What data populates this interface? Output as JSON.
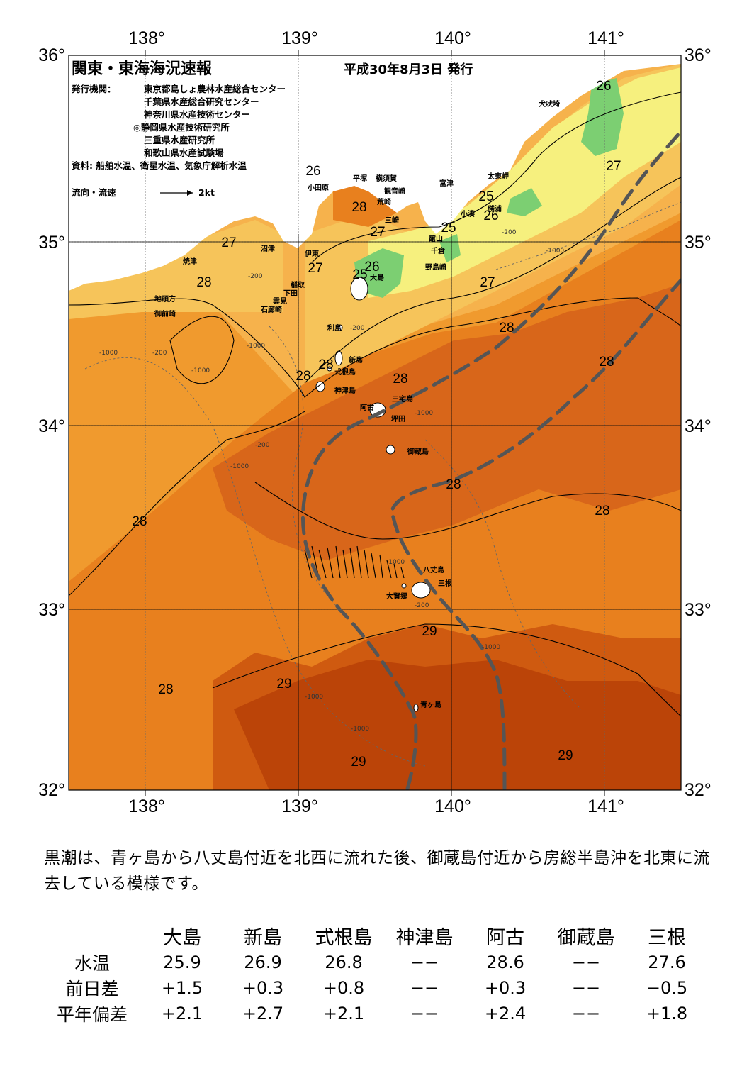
{
  "header": {
    "title": "関東・東海海況速報",
    "date": "平成30年8月3日 発行",
    "issuer_label": "発行機関：",
    "issuers": [
      "東京都島しょ農林水産総合センター",
      "千葉県水産総合研究センター",
      "神奈川県水産技術センター",
      "◎静岡県水産技術研究所",
      "三重県水産研究所",
      "和歌山県水産試験場"
    ],
    "source": "資料: 船舶水温、衛星水温、気象庁解析水温",
    "legend_label": "流向・流速",
    "legend_value": "2kt"
  },
  "axes": {
    "lon_top": [
      "138°",
      "139°",
      "140°",
      "141°"
    ],
    "lon_bottom": [
      "138°",
      "139°",
      "140°",
      "141°"
    ],
    "lat_left": [
      "36°",
      "35°",
      "34°",
      "33°",
      "32°"
    ],
    "lat_right": [
      "36°",
      "35°",
      "34°",
      "33°",
      "32°"
    ]
  },
  "place_names": [
    "小田原",
    "平塚",
    "横須賀",
    "観音崎",
    "荒崎",
    "三崎",
    "富津",
    "館山",
    "千倉",
    "野島崎",
    "小湊",
    "勝浦",
    "太東岬",
    "犬吠埼",
    "沼津",
    "焼津",
    "伊東",
    "稲取",
    "下田",
    "雲見",
    "石廊崎",
    "地頭方",
    "御前崎",
    "大島",
    "利島",
    "新島",
    "式根島",
    "神津島",
    "三宅島",
    "阿古",
    "坪田",
    "御蔵島",
    "八丈島",
    "三根",
    "大賀郷",
    "青ヶ島"
  ],
  "isotherm_labels": [
    "26",
    "28",
    "27",
    "25",
    "26",
    "25",
    "26",
    "27",
    "28",
    "27",
    "26",
    "25",
    "27",
    "28",
    "27",
    "28",
    "28",
    "28",
    "28",
    "28",
    "28",
    "28",
    "28",
    "29",
    "29",
    "29",
    "29",
    "28"
  ],
  "depth_labels": [
    "-1000",
    "-200",
    "-1000",
    "-200",
    "-1000",
    "-200",
    "-1000",
    "-200",
    "-1000",
    "-1000",
    "-200",
    "-1000",
    "-1000",
    "-1000",
    "-1000",
    "-200"
  ],
  "summary": "黒潮は、青ヶ島から八丈島付近を北西に流れた後、御蔵島付近から房総半島沖を北東に流去している模様です。",
  "table": {
    "columns": [
      "大島",
      "新島",
      "式根島",
      "神津島",
      "阿古",
      "御蔵島",
      "三根"
    ],
    "rows": [
      {
        "label": "水温",
        "values": [
          "25.9",
          "26.9",
          "26.8",
          "−−",
          "28.6",
          "−−",
          "27.6"
        ]
      },
      {
        "label": "前日差",
        "values": [
          "+1.5",
          "+0.3",
          "+0.8",
          "−−",
          "+0.3",
          "−−",
          "−0.5"
        ]
      },
      {
        "label": "平年偏差",
        "values": [
          "+2.1",
          "+2.7",
          "+2.1",
          "−−",
          "+2.4",
          "−−",
          "+1.8"
        ]
      }
    ]
  },
  "colors": {
    "land": "#ffffff",
    "sst_25": "#7ccf72",
    "sst_26": "#f6f07e",
    "sst_27": "#f6c45a",
    "sst_28": "#f09a2e",
    "sst_28b": "#e8801e",
    "sst_29": "#cf5a10",
    "sst_29b": "#bb4408",
    "kuroshio_axis": "#555555"
  }
}
